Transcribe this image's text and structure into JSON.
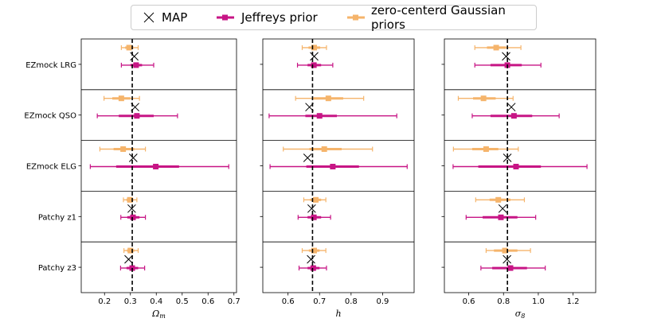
{
  "legend": {
    "map_label": "MAP",
    "jeffreys_label": "Jeffreys prior",
    "gaussian_label": "zero-centerd Gaussian priors"
  },
  "colors": {
    "jeffreys": "#C71585",
    "gaussian": "#F5B46B",
    "map": "#000000"
  },
  "chart_data": {
    "type": "errorbar-forest",
    "rows": [
      "EZmock LRG",
      "EZmock QSO",
      "EZmock ELG",
      "Patchy z1",
      "Patchy z3"
    ],
    "panels": [
      {
        "xlabel": "Ωm",
        "xlabel_main": "Ω",
        "xlabel_sub": "m",
        "xlim": [
          0.11,
          0.71
        ],
        "ticks": [
          0.2,
          0.3,
          0.4,
          0.5,
          0.6,
          0.7
        ],
        "tick_labels": [
          "0.2",
          "0.3",
          "0.4",
          "0.5",
          "0.6",
          "0.7"
        ],
        "truth": 0.3071,
        "map": [
          0.315,
          0.318,
          0.311,
          0.305,
          0.293
        ],
        "jeffreys": [
          {
            "c": 0.322,
            "i1": [
              0.3,
              0.345
            ],
            "i2": [
              0.265,
              0.39
            ]
          },
          {
            "c": 0.325,
            "i1": [
              0.255,
              0.39
            ],
            "i2": [
              0.172,
              0.482
            ]
          },
          {
            "c": 0.398,
            "i1": [
              0.245,
              0.488
            ],
            "i2": [
              0.145,
              0.68
            ]
          },
          {
            "c": 0.31,
            "i1": [
              0.288,
              0.335
            ],
            "i2": [
              0.263,
              0.358
            ]
          },
          {
            "c": 0.307,
            "i1": [
              0.285,
              0.33
            ],
            "i2": [
              0.262,
              0.355
            ]
          }
        ],
        "gaussian": [
          {
            "c": 0.295,
            "i1": [
              0.28,
              0.312
            ],
            "i2": [
              0.265,
              0.33
            ]
          },
          {
            "c": 0.265,
            "i1": [
              0.23,
              0.3
            ],
            "i2": [
              0.198,
              0.335
            ]
          },
          {
            "c": 0.272,
            "i1": [
              0.235,
              0.315
            ],
            "i2": [
              0.182,
              0.358
            ]
          },
          {
            "c": 0.298,
            "i1": [
              0.285,
              0.312
            ],
            "i2": [
              0.273,
              0.325
            ]
          },
          {
            "c": 0.3,
            "i1": [
              0.287,
              0.315
            ],
            "i2": [
              0.275,
              0.33
            ]
          }
        ]
      },
      {
        "xlabel": "h",
        "xlabel_main": "h",
        "xlabel_sub": "",
        "xlim": [
          0.52,
          1.0
        ],
        "ticks": [
          0.6,
          0.7,
          0.8,
          0.9
        ],
        "tick_labels": [
          "0.6",
          "0.7",
          "0.8",
          "0.9"
        ],
        "truth": 0.6777,
        "map": [
          0.683,
          0.668,
          0.662,
          0.675,
          0.673
        ],
        "jeffreys": [
          {
            "c": 0.682,
            "i1": [
              0.662,
              0.705
            ],
            "i2": [
              0.63,
              0.742
            ]
          },
          {
            "c": 0.7,
            "i1": [
              0.655,
              0.755
            ],
            "i2": [
              0.54,
              0.945
            ]
          },
          {
            "c": 0.742,
            "i1": [
              0.658,
              0.825
            ],
            "i2": [
              0.543,
              0.978
            ]
          },
          {
            "c": 0.682,
            "i1": [
              0.662,
              0.705
            ],
            "i2": [
              0.632,
              0.735
            ]
          },
          {
            "c": 0.68,
            "i1": [
              0.662,
              0.7
            ],
            "i2": [
              0.635,
              0.722
            ]
          }
        ],
        "gaussian": [
          {
            "c": 0.683,
            "i1": [
              0.665,
              0.702
            ],
            "i2": [
              0.645,
              0.722
            ]
          },
          {
            "c": 0.728,
            "i1": [
              0.68,
              0.775
            ],
            "i2": [
              0.624,
              0.84
            ]
          },
          {
            "c": 0.715,
            "i1": [
              0.668,
              0.77
            ],
            "i2": [
              0.585,
              0.868
            ]
          },
          {
            "c": 0.688,
            "i1": [
              0.67,
              0.705
            ],
            "i2": [
              0.65,
              0.72
            ]
          },
          {
            "c": 0.683,
            "i1": [
              0.666,
              0.7
            ],
            "i2": [
              0.645,
              0.72
            ]
          }
        ]
      },
      {
        "xlabel": "σ8",
        "xlabel_main": "σ",
        "xlabel_sub": "8",
        "xlim": [
          0.46,
          1.33
        ],
        "ticks": [
          0.6,
          0.8,
          1.0,
          1.2
        ],
        "tick_labels": [
          "0.6",
          "0.8",
          "1.0",
          "1.2"
        ],
        "truth": 0.8225,
        "map": [
          0.815,
          0.845,
          0.822,
          0.795,
          0.82
        ],
        "jeffreys": [
          {
            "c": 0.822,
            "i1": [
              0.725,
              0.905
            ],
            "i2": [
              0.635,
              1.015
            ]
          },
          {
            "c": 0.86,
            "i1": [
              0.725,
              0.965
            ],
            "i2": [
              0.62,
              1.12
            ]
          },
          {
            "c": 0.872,
            "i1": [
              0.655,
              1.015
            ],
            "i2": [
              0.51,
              1.28
            ]
          },
          {
            "c": 0.785,
            "i1": [
              0.68,
              0.88
            ],
            "i2": [
              0.585,
              0.985
            ]
          },
          {
            "c": 0.84,
            "i1": [
              0.735,
              0.935
            ],
            "i2": [
              0.67,
              1.04
            ]
          }
        ],
        "gaussian": [
          {
            "c": 0.758,
            "i1": [
              0.705,
              0.815
            ],
            "i2": [
              0.635,
              0.9
            ]
          },
          {
            "c": 0.685,
            "i1": [
              0.625,
              0.755
            ],
            "i2": [
              0.54,
              0.855
            ]
          },
          {
            "c": 0.7,
            "i1": [
              0.62,
              0.77
            ],
            "i2": [
              0.512,
              0.885
            ]
          },
          {
            "c": 0.77,
            "i1": [
              0.72,
              0.84
            ],
            "i2": [
              0.64,
              0.92
            ]
          },
          {
            "c": 0.808,
            "i1": [
              0.745,
              0.88
            ],
            "i2": [
              0.7,
              0.955
            ]
          }
        ]
      }
    ]
  }
}
